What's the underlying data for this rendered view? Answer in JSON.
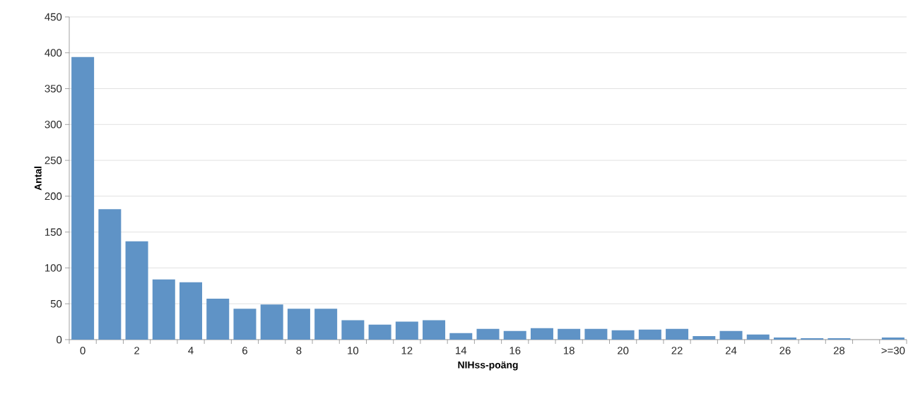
{
  "chart_data": {
    "type": "bar",
    "xlabel": "NIHss-poäng",
    "ylabel": "Antal",
    "categories": [
      "0",
      null,
      "2",
      null,
      "4",
      null,
      "6",
      null,
      "8",
      null,
      "10",
      null,
      "12",
      null,
      "14",
      null,
      "16",
      null,
      "18",
      null,
      "20",
      null,
      "22",
      null,
      "24",
      null,
      "26",
      null,
      "28",
      null,
      ">=30"
    ],
    "values": [
      394,
      182,
      137,
      84,
      80,
      57,
      43,
      49,
      43,
      43,
      27,
      21,
      25,
      27,
      9,
      15,
      12,
      16,
      15,
      15,
      13,
      14,
      15,
      5,
      12,
      7,
      3,
      2,
      2,
      0,
      3
    ],
    "color": "#5f93c6",
    "ylim": [
      0,
      450
    ],
    "yticks": [
      0,
      50,
      100,
      150,
      200,
      250,
      300,
      350,
      400,
      450
    ],
    "grid": "y"
  }
}
